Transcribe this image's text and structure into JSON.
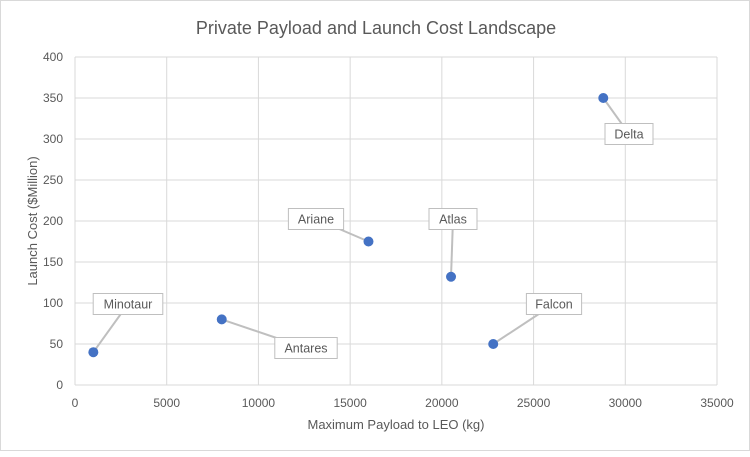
{
  "chart_data": {
    "type": "scatter",
    "title": "Private Payload and Launch Cost Landscape",
    "xlabel": "Maximum Payload to LEO (kg)",
    "ylabel": "Launch Cost ($Million)",
    "xlim": [
      0,
      35000
    ],
    "ylim": [
      0,
      400
    ],
    "xticks": [
      0,
      5000,
      10000,
      15000,
      20000,
      25000,
      30000,
      35000
    ],
    "yticks": [
      0,
      50,
      100,
      150,
      200,
      250,
      300,
      350,
      400
    ],
    "grid": true,
    "marker_color": "#4472c4",
    "points": [
      {
        "label": "Minotaur",
        "x": 1000,
        "y": 40
      },
      {
        "label": "Antares",
        "x": 8000,
        "y": 80
      },
      {
        "label": "Ariane",
        "x": 16000,
        "y": 175
      },
      {
        "label": "Atlas",
        "x": 20500,
        "y": 132
      },
      {
        "label": "Falcon",
        "x": 22800,
        "y": 50
      },
      {
        "label": "Delta",
        "x": 28800,
        "y": 350
      }
    ]
  }
}
